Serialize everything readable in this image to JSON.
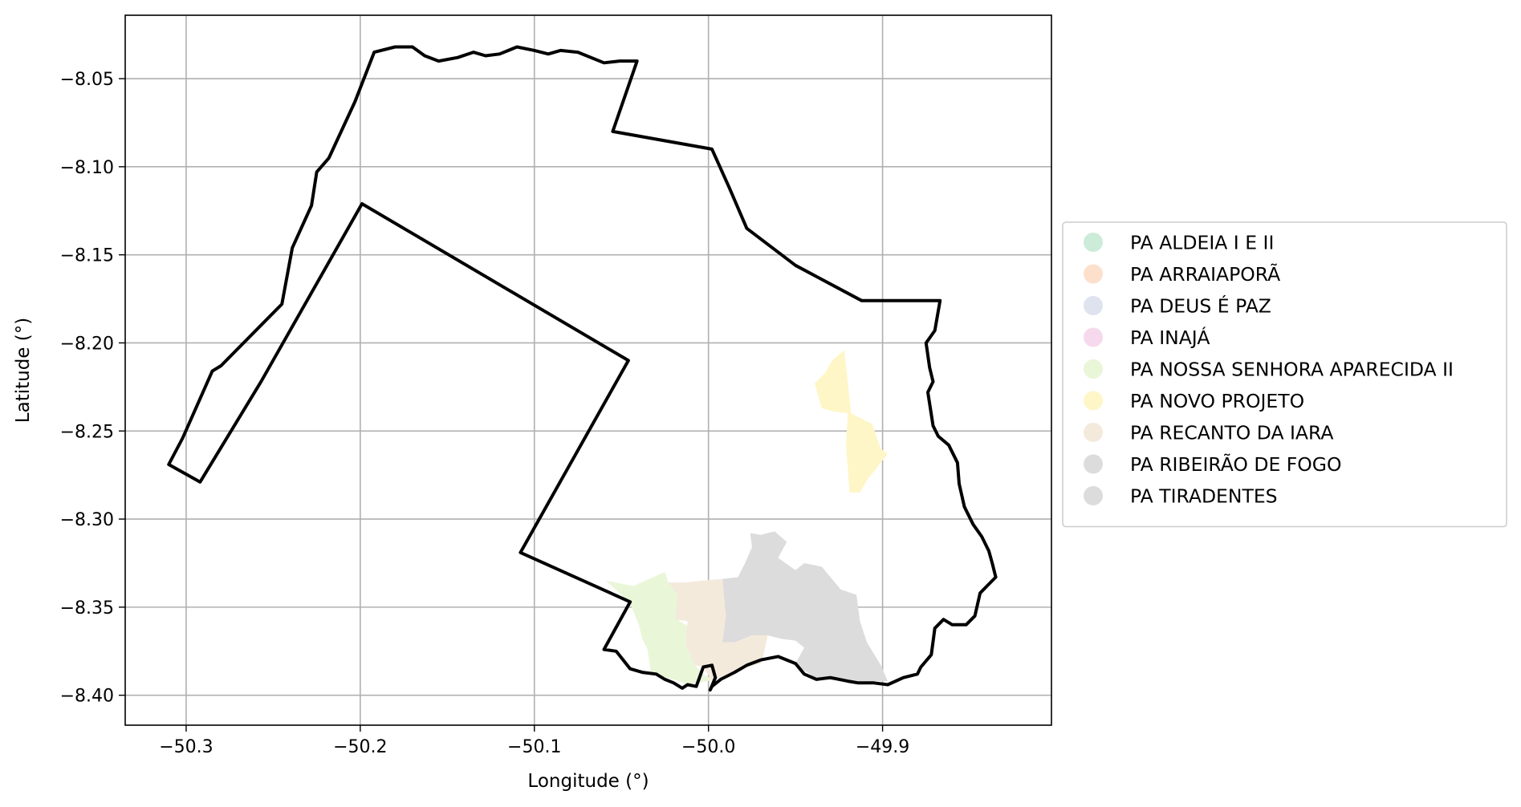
{
  "chart_data": {
    "type": "map",
    "title": "",
    "xlabel": "Longitude (°)",
    "ylabel": "Latitude (°)",
    "xlim": [
      -50.335,
      -49.803
    ],
    "ylim": [
      -8.417,
      -8.014
    ],
    "grid": true,
    "x_ticks": [
      {
        "value": -50.3,
        "label": "−50.3"
      },
      {
        "value": -50.2,
        "label": "−50.2"
      },
      {
        "value": -50.1,
        "label": "−50.1"
      },
      {
        "value": -50.0,
        "label": "−50.0"
      },
      {
        "value": -49.9,
        "label": "−49.9"
      }
    ],
    "y_ticks": [
      {
        "value": -8.05,
        "label": "−8.05"
      },
      {
        "value": -8.1,
        "label": "−8.10"
      },
      {
        "value": -8.15,
        "label": "−8.15"
      },
      {
        "value": -8.2,
        "label": "−8.20"
      },
      {
        "value": -8.25,
        "label": "−8.25"
      },
      {
        "value": -8.3,
        "label": "−8.30"
      },
      {
        "value": -8.35,
        "label": "−8.35"
      },
      {
        "value": -8.4,
        "label": "−8.40"
      }
    ],
    "legend_position": "right",
    "legend": [
      {
        "label": "PA ALDEIA I E II",
        "color": "#cdebd9"
      },
      {
        "label": "PA ARRAIAPORÃ",
        "color": "#fde0cc"
      },
      {
        "label": "PA DEUS É PAZ",
        "color": "#dfe3f0"
      },
      {
        "label": "PA INAJÁ",
        "color": "#f6d9ec"
      },
      {
        "label": "PA NOSSA SENHORA APARECIDA II",
        "color": "#eaf6d8"
      },
      {
        "label": "PA NOVO PROJETO",
        "color": "#fff6c8"
      },
      {
        "label": "PA RECANTO DA IARA",
        "color": "#f3eadc"
      },
      {
        "label": "PA RIBEIRÃO DE FOGO",
        "color": "#dcdcdc"
      },
      {
        "label": "PA TIRADENTES",
        "color": "#dcdcdc"
      }
    ],
    "boundary": {
      "color": "#000000",
      "points": [
        [
          -50.31,
          -8.269
        ],
        [
          -50.302,
          -8.254
        ],
        [
          -50.285,
          -8.216
        ],
        [
          -50.28,
          -8.213
        ],
        [
          -50.245,
          -8.178
        ],
        [
          -50.242,
          -8.162
        ],
        [
          -50.239,
          -8.146
        ],
        [
          -50.228,
          -8.122
        ],
        [
          -50.225,
          -8.103
        ],
        [
          -50.218,
          -8.095
        ],
        [
          -50.203,
          -8.063
        ],
        [
          -50.192,
          -8.035
        ],
        [
          -50.18,
          -8.032
        ],
        [
          -50.17,
          -8.032
        ],
        [
          -50.163,
          -8.037
        ],
        [
          -50.155,
          -8.04
        ],
        [
          -50.144,
          -8.038
        ],
        [
          -50.135,
          -8.035
        ],
        [
          -50.128,
          -8.037
        ],
        [
          -50.12,
          -8.036
        ],
        [
          -50.11,
          -8.032
        ],
        [
          -50.1,
          -8.034
        ],
        [
          -50.092,
          -8.036
        ],
        [
          -50.085,
          -8.034
        ],
        [
          -50.075,
          -8.035
        ],
        [
          -50.06,
          -8.041
        ],
        [
          -50.051,
          -8.04
        ],
        [
          -50.041,
          -8.04
        ],
        [
          -50.055,
          -8.08
        ],
        [
          -49.998,
          -8.09
        ],
        [
          -49.988,
          -8.112
        ],
        [
          -49.978,
          -8.135
        ],
        [
          -49.95,
          -8.156
        ],
        [
          -49.912,
          -8.176
        ],
        [
          -49.867,
          -8.176
        ],
        [
          -49.87,
          -8.193
        ],
        [
          -49.875,
          -8.2
        ],
        [
          -49.873,
          -8.214
        ],
        [
          -49.871,
          -8.222
        ],
        [
          -49.874,
          -8.228
        ],
        [
          -49.871,
          -8.247
        ],
        [
          -49.868,
          -8.253
        ],
        [
          -49.862,
          -8.258
        ],
        [
          -49.857,
          -8.268
        ],
        [
          -49.856,
          -8.28
        ],
        [
          -49.853,
          -8.293
        ],
        [
          -49.848,
          -8.303
        ],
        [
          -49.843,
          -8.31
        ],
        [
          -49.839,
          -8.318
        ],
        [
          -49.837,
          -8.325
        ],
        [
          -49.835,
          -8.333
        ],
        [
          -49.84,
          -8.338
        ],
        [
          -49.844,
          -8.342
        ],
        [
          -49.847,
          -8.355
        ],
        [
          -49.852,
          -8.36
        ],
        [
          -49.86,
          -8.36
        ],
        [
          -49.865,
          -8.357
        ],
        [
          -49.87,
          -8.362
        ],
        [
          -49.872,
          -8.377
        ],
        [
          -49.878,
          -8.384
        ],
        [
          -49.88,
          -8.388
        ],
        [
          -49.888,
          -8.39
        ],
        [
          -49.897,
          -8.394
        ],
        [
          -49.905,
          -8.393
        ],
        [
          -49.914,
          -8.393
        ],
        [
          -49.92,
          -8.392
        ],
        [
          -49.93,
          -8.39
        ],
        [
          -49.938,
          -8.391
        ],
        [
          -49.945,
          -8.388
        ],
        [
          -49.95,
          -8.382
        ],
        [
          -49.96,
          -8.378
        ],
        [
          -49.97,
          -8.38
        ],
        [
          -49.978,
          -8.383
        ],
        [
          -49.985,
          -8.387
        ],
        [
          -49.993,
          -8.391
        ],
        [
          -49.998,
          -8.395
        ],
        [
          -49.999,
          -8.397
        ],
        [
          -49.996,
          -8.39
        ],
        [
          -49.998,
          -8.383
        ],
        [
          -50.003,
          -8.384
        ],
        [
          -50.007,
          -8.395
        ],
        [
          -50.012,
          -8.394
        ],
        [
          -50.015,
          -8.396
        ],
        [
          -50.02,
          -8.393
        ],
        [
          -50.025,
          -8.391
        ],
        [
          -50.03,
          -8.388
        ],
        [
          -50.038,
          -8.387
        ],
        [
          -50.045,
          -8.385
        ],
        [
          -50.049,
          -8.38
        ],
        [
          -50.053,
          -8.375
        ],
        [
          -50.06,
          -8.374
        ],
        [
          -50.045,
          -8.347
        ],
        [
          -50.108,
          -8.319
        ],
        [
          -50.046,
          -8.21
        ],
        [
          -50.199,
          -8.121
        ],
        [
          -50.257,
          -8.222
        ],
        [
          -50.292,
          -8.279
        ],
        [
          -50.31,
          -8.269
        ]
      ]
    },
    "regions": [
      {
        "name": "PA NOVO PROJETO",
        "color": "#fff6c8",
        "points": [
          [
            -49.939,
            -8.223
          ],
          [
            -49.933,
            -8.217
          ],
          [
            -49.929,
            -8.21
          ],
          [
            -49.922,
            -8.204
          ],
          [
            -49.918,
            -8.24
          ],
          [
            -49.906,
            -8.246
          ],
          [
            -49.901,
            -8.26
          ],
          [
            -49.897,
            -8.263
          ],
          [
            -49.909,
            -8.278
          ],
          [
            -49.913,
            -8.285
          ],
          [
            -49.919,
            -8.285
          ],
          [
            -49.921,
            -8.258
          ],
          [
            -49.92,
            -8.24
          ],
          [
            -49.928,
            -8.239
          ],
          [
            -49.935,
            -8.237
          ],
          [
            -49.939,
            -8.223
          ]
        ]
      },
      {
        "name": "PA NOSSA SENHORA APARECIDA II",
        "color": "#eaf6d8",
        "points": [
          [
            -50.059,
            -8.335
          ],
          [
            -50.043,
            -8.338
          ],
          [
            -50.025,
            -8.33
          ],
          [
            -50.023,
            -8.336
          ],
          [
            -50.018,
            -8.343
          ],
          [
            -50.018,
            -8.357
          ],
          [
            -50.01,
            -8.362
          ],
          [
            -50.01,
            -8.374
          ],
          [
            -50.008,
            -8.383
          ],
          [
            -50.002,
            -8.389
          ],
          [
            -49.995,
            -8.391
          ],
          [
            -50.012,
            -8.394
          ],
          [
            -50.02,
            -8.391
          ],
          [
            -50.033,
            -8.388
          ],
          [
            -50.035,
            -8.374
          ],
          [
            -50.038,
            -8.368
          ],
          [
            -50.04,
            -8.36
          ],
          [
            -50.045,
            -8.348
          ],
          [
            -50.05,
            -8.343
          ],
          [
            -50.059,
            -8.335
          ]
        ]
      },
      {
        "name": "PA RECANTO DA IARA",
        "color": "#f3eadc",
        "points": [
          [
            -50.023,
            -8.336
          ],
          [
            -50.013,
            -8.336
          ],
          [
            -50.004,
            -8.335
          ],
          [
            -49.992,
            -8.334
          ],
          [
            -49.99,
            -8.355
          ],
          [
            -49.992,
            -8.37
          ],
          [
            -49.985,
            -8.37
          ],
          [
            -49.975,
            -8.366
          ],
          [
            -49.966,
            -8.366
          ],
          [
            -49.969,
            -8.38
          ],
          [
            -49.97,
            -8.382
          ],
          [
            -49.985,
            -8.386
          ],
          [
            -49.998,
            -8.392
          ],
          [
            -50.003,
            -8.384
          ],
          [
            -50.008,
            -8.383
          ],
          [
            -50.013,
            -8.371
          ],
          [
            -50.012,
            -8.358
          ],
          [
            -50.019,
            -8.357
          ],
          [
            -50.018,
            -8.343
          ],
          [
            -50.023,
            -8.336
          ]
        ]
      },
      {
        "name": "PA RIBEIRÃO DE FOGO",
        "color": "#dcdcdc",
        "points": [
          [
            -49.992,
            -8.334
          ],
          [
            -49.983,
            -8.333
          ],
          [
            -49.979,
            -8.325
          ],
          [
            -49.975,
            -8.316
          ],
          [
            -49.976,
            -8.308
          ],
          [
            -49.97,
            -8.309
          ],
          [
            -49.962,
            -8.307
          ],
          [
            -49.955,
            -8.313
          ],
          [
            -49.96,
            -8.322
          ],
          [
            -49.95,
            -8.329
          ],
          [
            -49.945,
            -8.325
          ],
          [
            -49.935,
            -8.327
          ],
          [
            -49.924,
            -8.34
          ],
          [
            -49.915,
            -8.343
          ],
          [
            -49.913,
            -8.358
          ],
          [
            -49.909,
            -8.37
          ],
          [
            -49.901,
            -8.383
          ],
          [
            -49.897,
            -8.392
          ],
          [
            -49.92,
            -8.392
          ],
          [
            -49.937,
            -8.391
          ],
          [
            -49.945,
            -8.386
          ],
          [
            -49.95,
            -8.382
          ],
          [
            -49.945,
            -8.373
          ],
          [
            -49.95,
            -8.369
          ],
          [
            -49.958,
            -8.368
          ],
          [
            -49.966,
            -8.366
          ],
          [
            -49.975,
            -8.366
          ],
          [
            -49.985,
            -8.37
          ],
          [
            -49.992,
            -8.37
          ],
          [
            -49.99,
            -8.355
          ],
          [
            -49.992,
            -8.334
          ]
        ]
      }
    ]
  }
}
